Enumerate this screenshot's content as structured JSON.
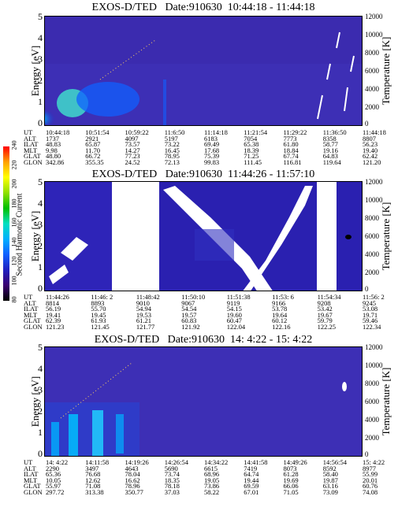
{
  "panels": [
    {
      "title": "EXOS-D/TED   Date:910630  10:44:18 - 11:44:18",
      "ylabel": "Energy [eV]",
      "y2label": "Temperature [K]",
      "yticks": [
        "0",
        "1",
        "2",
        "3",
        "4",
        "5"
      ],
      "y2ticks": [
        "0",
        "2000",
        "4000",
        "6000",
        "8000",
        "10000",
        "12000"
      ],
      "table_labels": [
        "UT",
        "ALT",
        "ILAT",
        "MLT",
        "GLAT",
        "GLON"
      ],
      "columns": [
        [
          "10:44:18",
          "1737",
          "48.83",
          "9.98",
          "48.80",
          "342.86"
        ],
        [
          "10:51:54",
          "2921",
          "65.87",
          "11.70",
          "66.72",
          "355.35"
        ],
        [
          "10:59:22",
          "4097",
          "73.57",
          "14.27",
          "77.23",
          "24.52"
        ],
        [
          "11:6:50",
          "5197",
          "73.22",
          "16.45",
          "78.95",
          "72.13"
        ],
        [
          "11:14:18",
          "6183",
          "69.49",
          "17.68",
          "75.39",
          "99.83"
        ],
        [
          "11:21:54",
          "7054",
          "65.38",
          "18.39",
          "71.25",
          "111.45"
        ],
        [
          "11:29:22",
          "7773",
          "61.80",
          "18.84",
          "67.74",
          "116.81"
        ],
        [
          "11:36:50",
          "8358",
          "58.77",
          "19.16",
          "64.83",
          "119.64"
        ],
        [
          "11:44:18",
          "8807",
          "56.23",
          "19.40",
          "62.42",
          "121.20"
        ]
      ]
    },
    {
      "title": "EXOS-D/TED   Date:910630  11:44:26 - 11:57:10",
      "ylabel": "Energy [eV]",
      "y2label": "Temperature [K]",
      "yticks": [
        "0",
        "1",
        "2",
        "3",
        "4",
        "5"
      ],
      "y2ticks": [
        "0",
        "2000",
        "4000",
        "6000",
        "8000",
        "10000",
        "12000"
      ],
      "table_labels": [
        "UT",
        "ALT",
        "ILAT",
        "MLT",
        "GLAT",
        "GLON"
      ],
      "columns": [
        [
          "11:44:26",
          "8814",
          "56.19",
          "19.41",
          "62.39",
          "121.23"
        ],
        [
          "11:46: 2",
          "8893",
          "55.70",
          "19.45",
          "61.93",
          "121.45"
        ],
        [
          "11:48:42",
          "9010",
          "54.94",
          "19.53",
          "61.21",
          "121.77"
        ],
        [
          "11:50:10",
          "9067",
          "54.54",
          "19.57",
          "60.83",
          "121.92"
        ],
        [
          "11:51:38",
          "9119",
          "54.15",
          "19.60",
          "60.47",
          "122.04"
        ],
        [
          "11:53: 6",
          "9166",
          "53.78",
          "19.64",
          "60.12",
          "122.16"
        ],
        [
          "11:54:34",
          "9208",
          "53.42",
          "19.67",
          "59.79",
          "122.25"
        ],
        [
          "11:56: 2",
          "9245",
          "53.08",
          "19.71",
          "59.46",
          "122.34"
        ]
      ]
    },
    {
      "title": "EXOS-D/TED   Date:910630  14: 4:22 - 15: 4:22",
      "ylabel": "Energy [eV]",
      "y2label": "Temperature [K]",
      "yticks": [
        "0",
        "1",
        "2",
        "3",
        "4",
        "5"
      ],
      "y2ticks": [
        "0",
        "2000",
        "4000",
        "6000",
        "8000",
        "10000",
        "12000"
      ],
      "table_labels": [
        "UT",
        "ALT",
        "ILAT",
        "MLT",
        "GLAT",
        "GLON"
      ],
      "columns": [
        [
          "14: 4:22",
          "2290",
          "65.36",
          "10.05",
          "55.97",
          "297.72"
        ],
        [
          "14:11:58",
          "3497",
          "76.68",
          "12.62",
          "71.08",
          "313.38"
        ],
        [
          "14:19:26",
          "4643",
          "78.04",
          "16.62",
          "78.96",
          "350.77"
        ],
        [
          "14:26:54",
          "5690",
          "73.74",
          "18.35",
          "78.18",
          "37.03"
        ],
        [
          "14:34:22",
          "6615",
          "68.96",
          "19.05",
          "73.86",
          "58.22"
        ],
        [
          "14:41:58",
          "7419",
          "64.74",
          "19.44",
          "69.59",
          "67.01"
        ],
        [
          "14:49:26",
          "8073",
          "61.28",
          "19.69",
          "66.06",
          "71.05"
        ],
        [
          "14:56:54",
          "8592",
          "58.40",
          "19.87",
          "63.16",
          "73.09"
        ],
        [
          "15: 4:22",
          "8977",
          "55.99",
          "20.01",
          "60.76",
          "74.08"
        ]
      ]
    }
  ],
  "colorbar": {
    "title": "Second Harmonic Current",
    "ticks": [
      "80",
      "100",
      "120",
      "140",
      "160",
      "180",
      "200",
      "220",
      "240"
    ],
    "colors": [
      "#000000",
      "#3a0070",
      "#2020c0",
      "#1060ff",
      "#00b0ff",
      "#00e0c0",
      "#00c000",
      "#90e000",
      "#ffff00",
      "#ffa000",
      "#ff0000"
    ]
  },
  "chart_data": [
    {
      "type": "heatmap",
      "title": "EXOS-D/TED   Date:910630  10:44:18 - 11:44:18",
      "xlabel": "UT",
      "ylabel": "Energy [eV]",
      "y2label": "Temperature [K]",
      "ylim": [
        0,
        5
      ],
      "y2lim": [
        0,
        12000
      ],
      "x": [
        "10:44:18",
        "10:51:54",
        "10:59:22",
        "11:6:50",
        "11:14:18",
        "11:21:54",
        "11:29:22",
        "11:36:50",
        "11:44:18"
      ]
    },
    {
      "type": "heatmap",
      "title": "EXOS-D/TED   Date:910630  11:44:26 - 11:57:10",
      "xlabel": "UT",
      "ylabel": "Energy [eV]",
      "y2label": "Temperature [K]",
      "ylim": [
        0,
        5
      ],
      "y2lim": [
        0,
        12000
      ],
      "x": [
        "11:44:26",
        "11:46: 2",
        "11:48:42",
        "11:50:10",
        "11:51:38",
        "11:53: 6",
        "11:54:34",
        "11:56: 2"
      ]
    },
    {
      "type": "heatmap",
      "title": "EXOS-D/TED   Date:910630  14: 4:22 - 15: 4:22",
      "xlabel": "UT",
      "ylabel": "Energy [eV]",
      "y2label": "Temperature [K]",
      "ylim": [
        0,
        5
      ],
      "y2lim": [
        0,
        12000
      ],
      "x": [
        "14: 4:22",
        "14:11:58",
        "14:19:26",
        "14:26:54",
        "14:34:22",
        "14:41:58",
        "14:49:26",
        "14:56:54",
        "15: 4:22"
      ]
    }
  ]
}
